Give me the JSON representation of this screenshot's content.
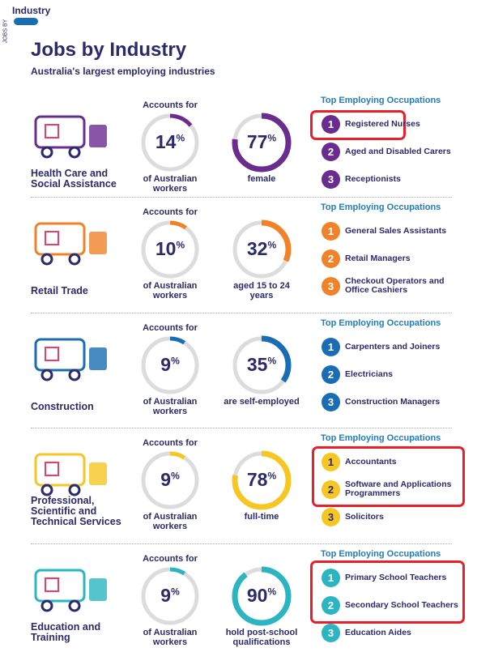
{
  "header": {
    "tab": "Industry",
    "side_label": "JOBS BY",
    "title": "Jobs by Industry",
    "subtitle": "Australia's largest employing industries"
  },
  "sections": [
    {
      "name": "Health Care and Social Assistance",
      "color": "#6a2c8e",
      "accounts_label": "Accounts for",
      "share": {
        "value": 14,
        "unit": "%",
        "caption": "of Australian workers"
      },
      "stat": {
        "value": 77,
        "unit": "%",
        "caption": "female"
      },
      "occupations_title": "Top Employing Occupations",
      "occupations": [
        {
          "rank": 1,
          "name": "Registered Nurses"
        },
        {
          "rank": 2,
          "name": "Aged and Disabled Carers"
        },
        {
          "rank": 3,
          "name": "Receptionists"
        }
      ]
    },
    {
      "name": "Retail Trade",
      "color": "#f0832a",
      "accounts_label": "Accounts for",
      "share": {
        "value": 10,
        "unit": "%",
        "caption": "of Australian workers"
      },
      "stat": {
        "value": 32,
        "unit": "%",
        "caption": "aged 15 to 24 years"
      },
      "occupations_title": "Top Employing Occupations",
      "occupations": [
        {
          "rank": 1,
          "name": "General Sales Assistants"
        },
        {
          "rank": 2,
          "name": "Retail Managers"
        },
        {
          "rank": 3,
          "name": "Checkout Operators and Office Cashiers"
        }
      ]
    },
    {
      "name": "Construction",
      "color": "#1a6db3",
      "accounts_label": "Accounts for",
      "share": {
        "value": 9,
        "unit": "%",
        "caption": "of Australian workers"
      },
      "stat": {
        "value": 35,
        "unit": "%",
        "caption": "are self-employed"
      },
      "occupations_title": "Top Employing Occupations",
      "occupations": [
        {
          "rank": 1,
          "name": "Carpenters and Joiners"
        },
        {
          "rank": 2,
          "name": "Electricians"
        },
        {
          "rank": 3,
          "name": "Construction Managers"
        }
      ]
    },
    {
      "name": "Professional, Scientific and Technical Services",
      "color": "#f6c623",
      "accounts_label": "Accounts for",
      "share": {
        "value": 9,
        "unit": "%",
        "caption": "of Australian workers"
      },
      "stat": {
        "value": 78,
        "unit": "%",
        "caption": "full-time"
      },
      "occupations_title": "Top Employing Occupations",
      "occupations": [
        {
          "rank": 1,
          "name": "Accountants"
        },
        {
          "rank": 2,
          "name": "Software and Applications Programmers"
        },
        {
          "rank": 3,
          "name": "Solicitors"
        }
      ]
    },
    {
      "name": "Education and Training",
      "color": "#2ab5c0",
      "accounts_label": "Accounts for",
      "share": {
        "value": 9,
        "unit": "%",
        "caption": "of Australian workers"
      },
      "stat": {
        "value": 90,
        "unit": "%",
        "caption": "hold post-school qualifications"
      },
      "occupations_title": "Top Employing Occupations",
      "occupations": [
        {
          "rank": 1,
          "name": "Primary School Teachers"
        },
        {
          "rank": 2,
          "name": "Secondary School Teachers"
        },
        {
          "rank": 3,
          "name": "Education Aides"
        }
      ]
    }
  ]
}
